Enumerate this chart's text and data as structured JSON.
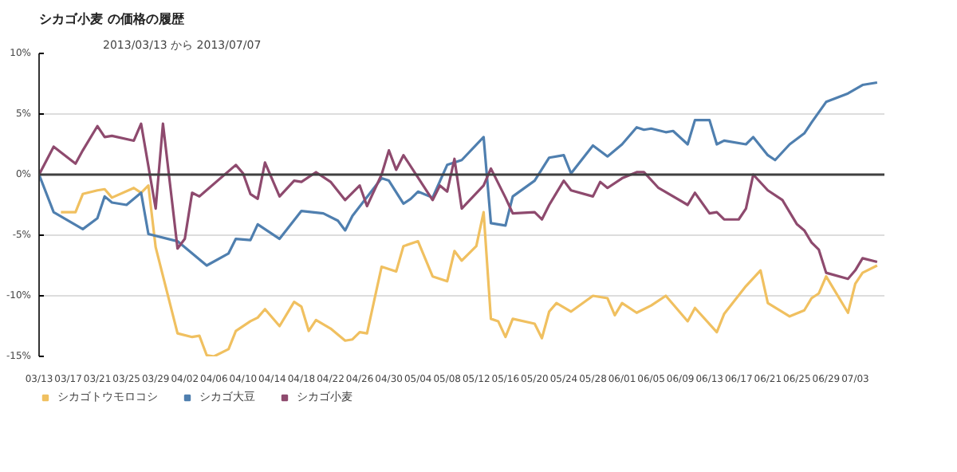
{
  "chart_data": {
    "type": "line",
    "title": "シカゴ小麦 の価格の履歴",
    "subtitle": "2013/03/13 から 2013/07/07",
    "xlim": [
      "2013-03-13",
      "2013-07-07"
    ],
    "xticks": [
      {
        "value": "2013-03-13",
        "label": "03/13"
      },
      {
        "value": "2013-03-17",
        "label": "03/17"
      },
      {
        "value": "2013-03-21",
        "label": "03/21"
      },
      {
        "value": "2013-03-25",
        "label": "03/25"
      },
      {
        "value": "2013-03-29",
        "label": "03/29"
      },
      {
        "value": "2013-04-02",
        "label": "04/02"
      },
      {
        "value": "2013-04-06",
        "label": "04/06"
      },
      {
        "value": "2013-04-10",
        "label": "04/10"
      },
      {
        "value": "2013-04-14",
        "label": "04/14"
      },
      {
        "value": "2013-04-18",
        "label": "04/18"
      },
      {
        "value": "2013-04-22",
        "label": "04/22"
      },
      {
        "value": "2013-04-26",
        "label": "04/26"
      },
      {
        "value": "2013-04-30",
        "label": "04/30"
      },
      {
        "value": "2013-05-04",
        "label": "05/04"
      },
      {
        "value": "2013-05-08",
        "label": "05/08"
      },
      {
        "value": "2013-05-12",
        "label": "05/12"
      },
      {
        "value": "2013-05-16",
        "label": "05/16"
      },
      {
        "value": "2013-05-20",
        "label": "05/20"
      },
      {
        "value": "2013-05-24",
        "label": "05/24"
      },
      {
        "value": "2013-05-28",
        "label": "05/28"
      },
      {
        "value": "2013-06-01",
        "label": "06/01"
      },
      {
        "value": "2013-06-05",
        "label": "06/05"
      },
      {
        "value": "2013-06-09",
        "label": "06/09"
      },
      {
        "value": "2013-06-13",
        "label": "06/13"
      },
      {
        "value": "2013-06-17",
        "label": "06/17"
      },
      {
        "value": "2013-06-21",
        "label": "06/21"
      },
      {
        "value": "2013-06-25",
        "label": "06/25"
      },
      {
        "value": "2013-06-29",
        "label": "06/29"
      },
      {
        "value": "2013-07-03",
        "label": "07/03"
      }
    ],
    "ylim": [
      -15,
      10
    ],
    "yticks": [
      {
        "value": -15,
        "label": "-15%"
      },
      {
        "value": -10,
        "label": "-10%"
      },
      {
        "value": -5,
        "label": "-5%"
      },
      {
        "value": 0,
        "label": "0%"
      },
      {
        "value": 5,
        "label": "5%"
      },
      {
        "value": 10,
        "label": "10%"
      }
    ],
    "grid": "y",
    "legend": "bottom left",
    "marker": "none",
    "line_style": "solid",
    "ref_lines": [
      {
        "axis": "y",
        "value": 0,
        "color": "#404040"
      }
    ],
    "series": [
      {
        "name": "シカゴトウモロコシ",
        "color": "#f0c060",
        "x": [
          "2013-03-16",
          "2013-03-18",
          "2013-03-19",
          "2013-03-21",
          "2013-03-22",
          "2013-03-23",
          "2013-03-26",
          "2013-03-27",
          "2013-03-28",
          "2013-03-29",
          "2013-04-01",
          "2013-04-03",
          "2013-04-04",
          "2013-04-05",
          "2013-04-06",
          "2013-04-08",
          "2013-04-09",
          "2013-04-11",
          "2013-04-12",
          "2013-04-13",
          "2013-04-15",
          "2013-04-17",
          "2013-04-18",
          "2013-04-19",
          "2013-04-20",
          "2013-04-22",
          "2013-04-24",
          "2013-04-25",
          "2013-04-26",
          "2013-04-27",
          "2013-04-29",
          "2013-05-01",
          "2013-05-02",
          "2013-05-04",
          "2013-05-06",
          "2013-05-08",
          "2013-05-09",
          "2013-05-10",
          "2013-05-12",
          "2013-05-13",
          "2013-05-14",
          "2013-05-15",
          "2013-05-16",
          "2013-05-17",
          "2013-05-20",
          "2013-05-21",
          "2013-05-22",
          "2013-05-23",
          "2013-05-25",
          "2013-05-28",
          "2013-05-30",
          "2013-05-31",
          "2013-06-01",
          "2013-06-03",
          "2013-06-05",
          "2013-06-07",
          "2013-06-10",
          "2013-06-11",
          "2013-06-14",
          "2013-06-15",
          "2013-06-18",
          "2013-06-20",
          "2013-06-21",
          "2013-06-24",
          "2013-06-26",
          "2013-06-27",
          "2013-06-28",
          "2013-06-29",
          "2013-07-02",
          "2013-07-03",
          "2013-07-04",
          "2013-07-06"
        ],
        "values": [
          -3.1,
          -3.1,
          -1.6,
          -1.3,
          -1.2,
          -1.9,
          -1.1,
          -1.5,
          -0.9,
          -6.0,
          -13.1,
          -13.4,
          -13.3,
          -14.9,
          -15.0,
          -14.4,
          -12.9,
          -12.1,
          -11.8,
          -11.1,
          -12.5,
          -10.5,
          -10.9,
          -12.9,
          -12.0,
          -12.7,
          -13.7,
          -13.6,
          -13.0,
          -13.1,
          -7.6,
          -8.0,
          -5.9,
          -5.5,
          -8.4,
          -8.8,
          -6.3,
          -7.1,
          -5.9,
          -3.1,
          -11.9,
          -12.1,
          -13.4,
          -11.9,
          -12.3,
          -13.5,
          -11.3,
          -10.6,
          -11.3,
          -10.0,
          -10.2,
          -11.6,
          -10.6,
          -11.4,
          -10.8,
          -10.0,
          -12.1,
          -11.0,
          -13.0,
          -11.5,
          -9.2,
          -7.9,
          -10.6,
          -11.7,
          -11.2,
          -10.2,
          -9.8,
          -8.4,
          -11.4,
          -9.0,
          -8.1,
          -7.5
        ]
      },
      {
        "name": "シカゴ大豆",
        "color": "#4f7faf",
        "x": [
          "2013-03-13",
          "2013-03-15",
          "2013-03-19",
          "2013-03-21",
          "2013-03-22",
          "2013-03-23",
          "2013-03-25",
          "2013-03-27",
          "2013-03-28",
          "2013-04-01",
          "2013-04-05",
          "2013-04-08",
          "2013-04-09",
          "2013-04-11",
          "2013-04-12",
          "2013-04-15",
          "2013-04-18",
          "2013-04-21",
          "2013-04-23",
          "2013-04-24",
          "2013-04-25",
          "2013-04-29",
          "2013-04-30",
          "2013-05-02",
          "2013-05-03",
          "2013-05-04",
          "2013-05-06",
          "2013-05-08",
          "2013-05-09",
          "2013-05-10",
          "2013-05-13",
          "2013-05-14",
          "2013-05-16",
          "2013-05-17",
          "2013-05-20",
          "2013-05-22",
          "2013-05-24",
          "2013-05-25",
          "2013-05-28",
          "2013-05-30",
          "2013-06-01",
          "2013-06-03",
          "2013-06-04",
          "2013-06-05",
          "2013-06-07",
          "2013-06-08",
          "2013-06-10",
          "2013-06-11",
          "2013-06-13",
          "2013-06-14",
          "2013-06-15",
          "2013-06-18",
          "2013-06-19",
          "2013-06-21",
          "2013-06-22",
          "2013-06-24",
          "2013-06-26",
          "2013-06-27",
          "2013-06-29",
          "2013-07-02",
          "2013-07-04",
          "2013-07-06"
        ],
        "values": [
          0,
          -3.1,
          -4.5,
          -3.6,
          -1.8,
          -2.3,
          -2.5,
          -1.5,
          -4.9,
          -5.5,
          -7.5,
          -6.5,
          -5.3,
          -5.4,
          -4.1,
          -5.3,
          -3.0,
          -3.2,
          -3.8,
          -4.6,
          -3.4,
          -0.3,
          -0.5,
          -2.4,
          -2.0,
          -1.4,
          -1.9,
          0.8,
          1.0,
          1.2,
          3.1,
          -4.0,
          -4.2,
          -1.8,
          -0.5,
          1.4,
          1.6,
          0.1,
          2.4,
          1.5,
          2.5,
          3.9,
          3.7,
          3.8,
          3.5,
          3.6,
          2.5,
          4.5,
          4.5,
          2.5,
          2.8,
          2.5,
          3.1,
          1.6,
          1.2,
          2.5,
          3.4,
          4.3,
          6.0,
          6.7,
          7.4,
          7.6
        ]
      },
      {
        "name": "シカゴ小麦",
        "color": "#8e4a6e",
        "x": [
          "2013-03-13",
          "2013-03-15",
          "2013-03-18",
          "2013-03-19",
          "2013-03-21",
          "2013-03-22",
          "2013-03-23",
          "2013-03-26",
          "2013-03-27",
          "2013-03-29",
          "2013-03-30",
          "2013-04-01",
          "2013-04-02",
          "2013-04-03",
          "2013-04-04",
          "2013-04-09",
          "2013-04-10",
          "2013-04-11",
          "2013-04-12",
          "2013-04-13",
          "2013-04-15",
          "2013-04-17",
          "2013-04-18",
          "2013-04-20",
          "2013-04-22",
          "2013-04-24",
          "2013-04-26",
          "2013-04-27",
          "2013-04-29",
          "2013-04-30",
          "2013-05-01",
          "2013-05-02",
          "2013-05-06",
          "2013-05-07",
          "2013-05-08",
          "2013-05-09",
          "2013-05-10",
          "2013-05-13",
          "2013-05-14",
          "2013-05-16",
          "2013-05-17",
          "2013-05-20",
          "2013-05-21",
          "2013-05-22",
          "2013-05-24",
          "2013-05-25",
          "2013-05-28",
          "2013-05-29",
          "2013-05-30",
          "2013-06-01",
          "2013-06-03",
          "2013-06-04",
          "2013-06-06",
          "2013-06-10",
          "2013-06-11",
          "2013-06-13",
          "2013-06-14",
          "2013-06-15",
          "2013-06-17",
          "2013-06-18",
          "2013-06-19",
          "2013-06-21",
          "2013-06-23",
          "2013-06-25",
          "2013-06-26",
          "2013-06-27",
          "2013-06-28",
          "2013-06-29",
          "2013-07-02",
          "2013-07-03",
          "2013-07-04",
          "2013-07-06"
        ],
        "values": [
          0,
          2.3,
          0.9,
          2.0,
          4.0,
          3.1,
          3.2,
          2.8,
          4.2,
          -2.8,
          4.2,
          -6.1,
          -5.3,
          -1.5,
          -1.8,
          0.8,
          0.1,
          -1.6,
          -2.0,
          1.0,
          -1.8,
          -0.5,
          -0.6,
          0.2,
          -0.6,
          -2.1,
          -0.9,
          -2.6,
          0,
          2.0,
          0.4,
          1.6,
          -2.1,
          -0.9,
          -1.4,
          1.3,
          -2.8,
          -0.9,
          0.5,
          -1.9,
          -3.2,
          -3.1,
          -3.7,
          -2.5,
          -0.5,
          -1.3,
          -1.8,
          -0.6,
          -1.1,
          -0.3,
          0.2,
          0.2,
          -1.1,
          -2.5,
          -1.5,
          -3.2,
          -3.1,
          -3.7,
          -3.7,
          -2.8,
          0,
          -1.3,
          -2.1,
          -4.1,
          -4.6,
          -5.6,
          -6.2,
          -8.1,
          -8.6,
          -7.9,
          -6.9,
          -7.2
        ]
      }
    ]
  }
}
